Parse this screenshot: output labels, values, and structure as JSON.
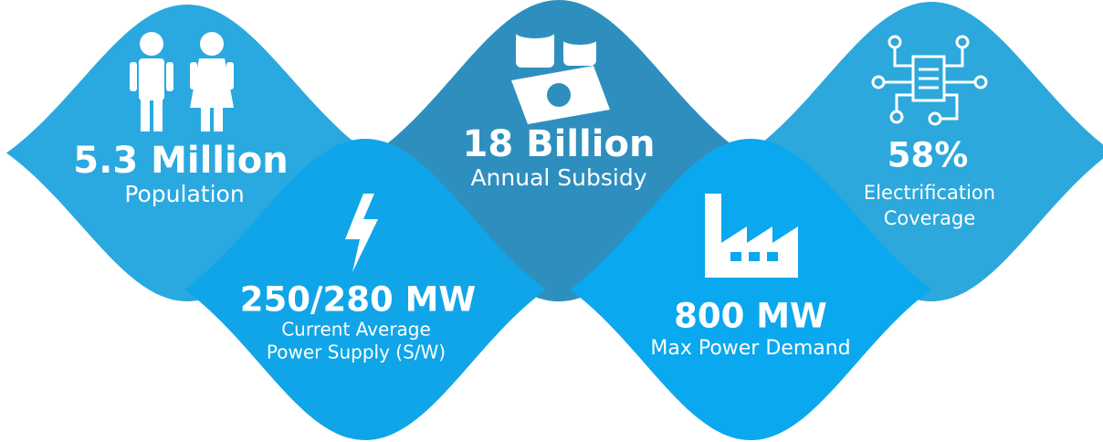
{
  "items": [
    {
      "value": "5.3 Million",
      "label": [
        "Population"
      ]
    },
    {
      "value": "250/280 MW",
      "label": [
        "Current Average",
        "Power Supply (S/W)"
      ]
    },
    {
      "value": "18 Billion",
      "label": [
        "Annual Subsidy"
      ]
    },
    {
      "value": "800 MW",
      "label": [
        "Max Power Demand"
      ]
    },
    {
      "value": "58%",
      "label": [
        "Electrification",
        "Coverage"
      ]
    }
  ]
}
